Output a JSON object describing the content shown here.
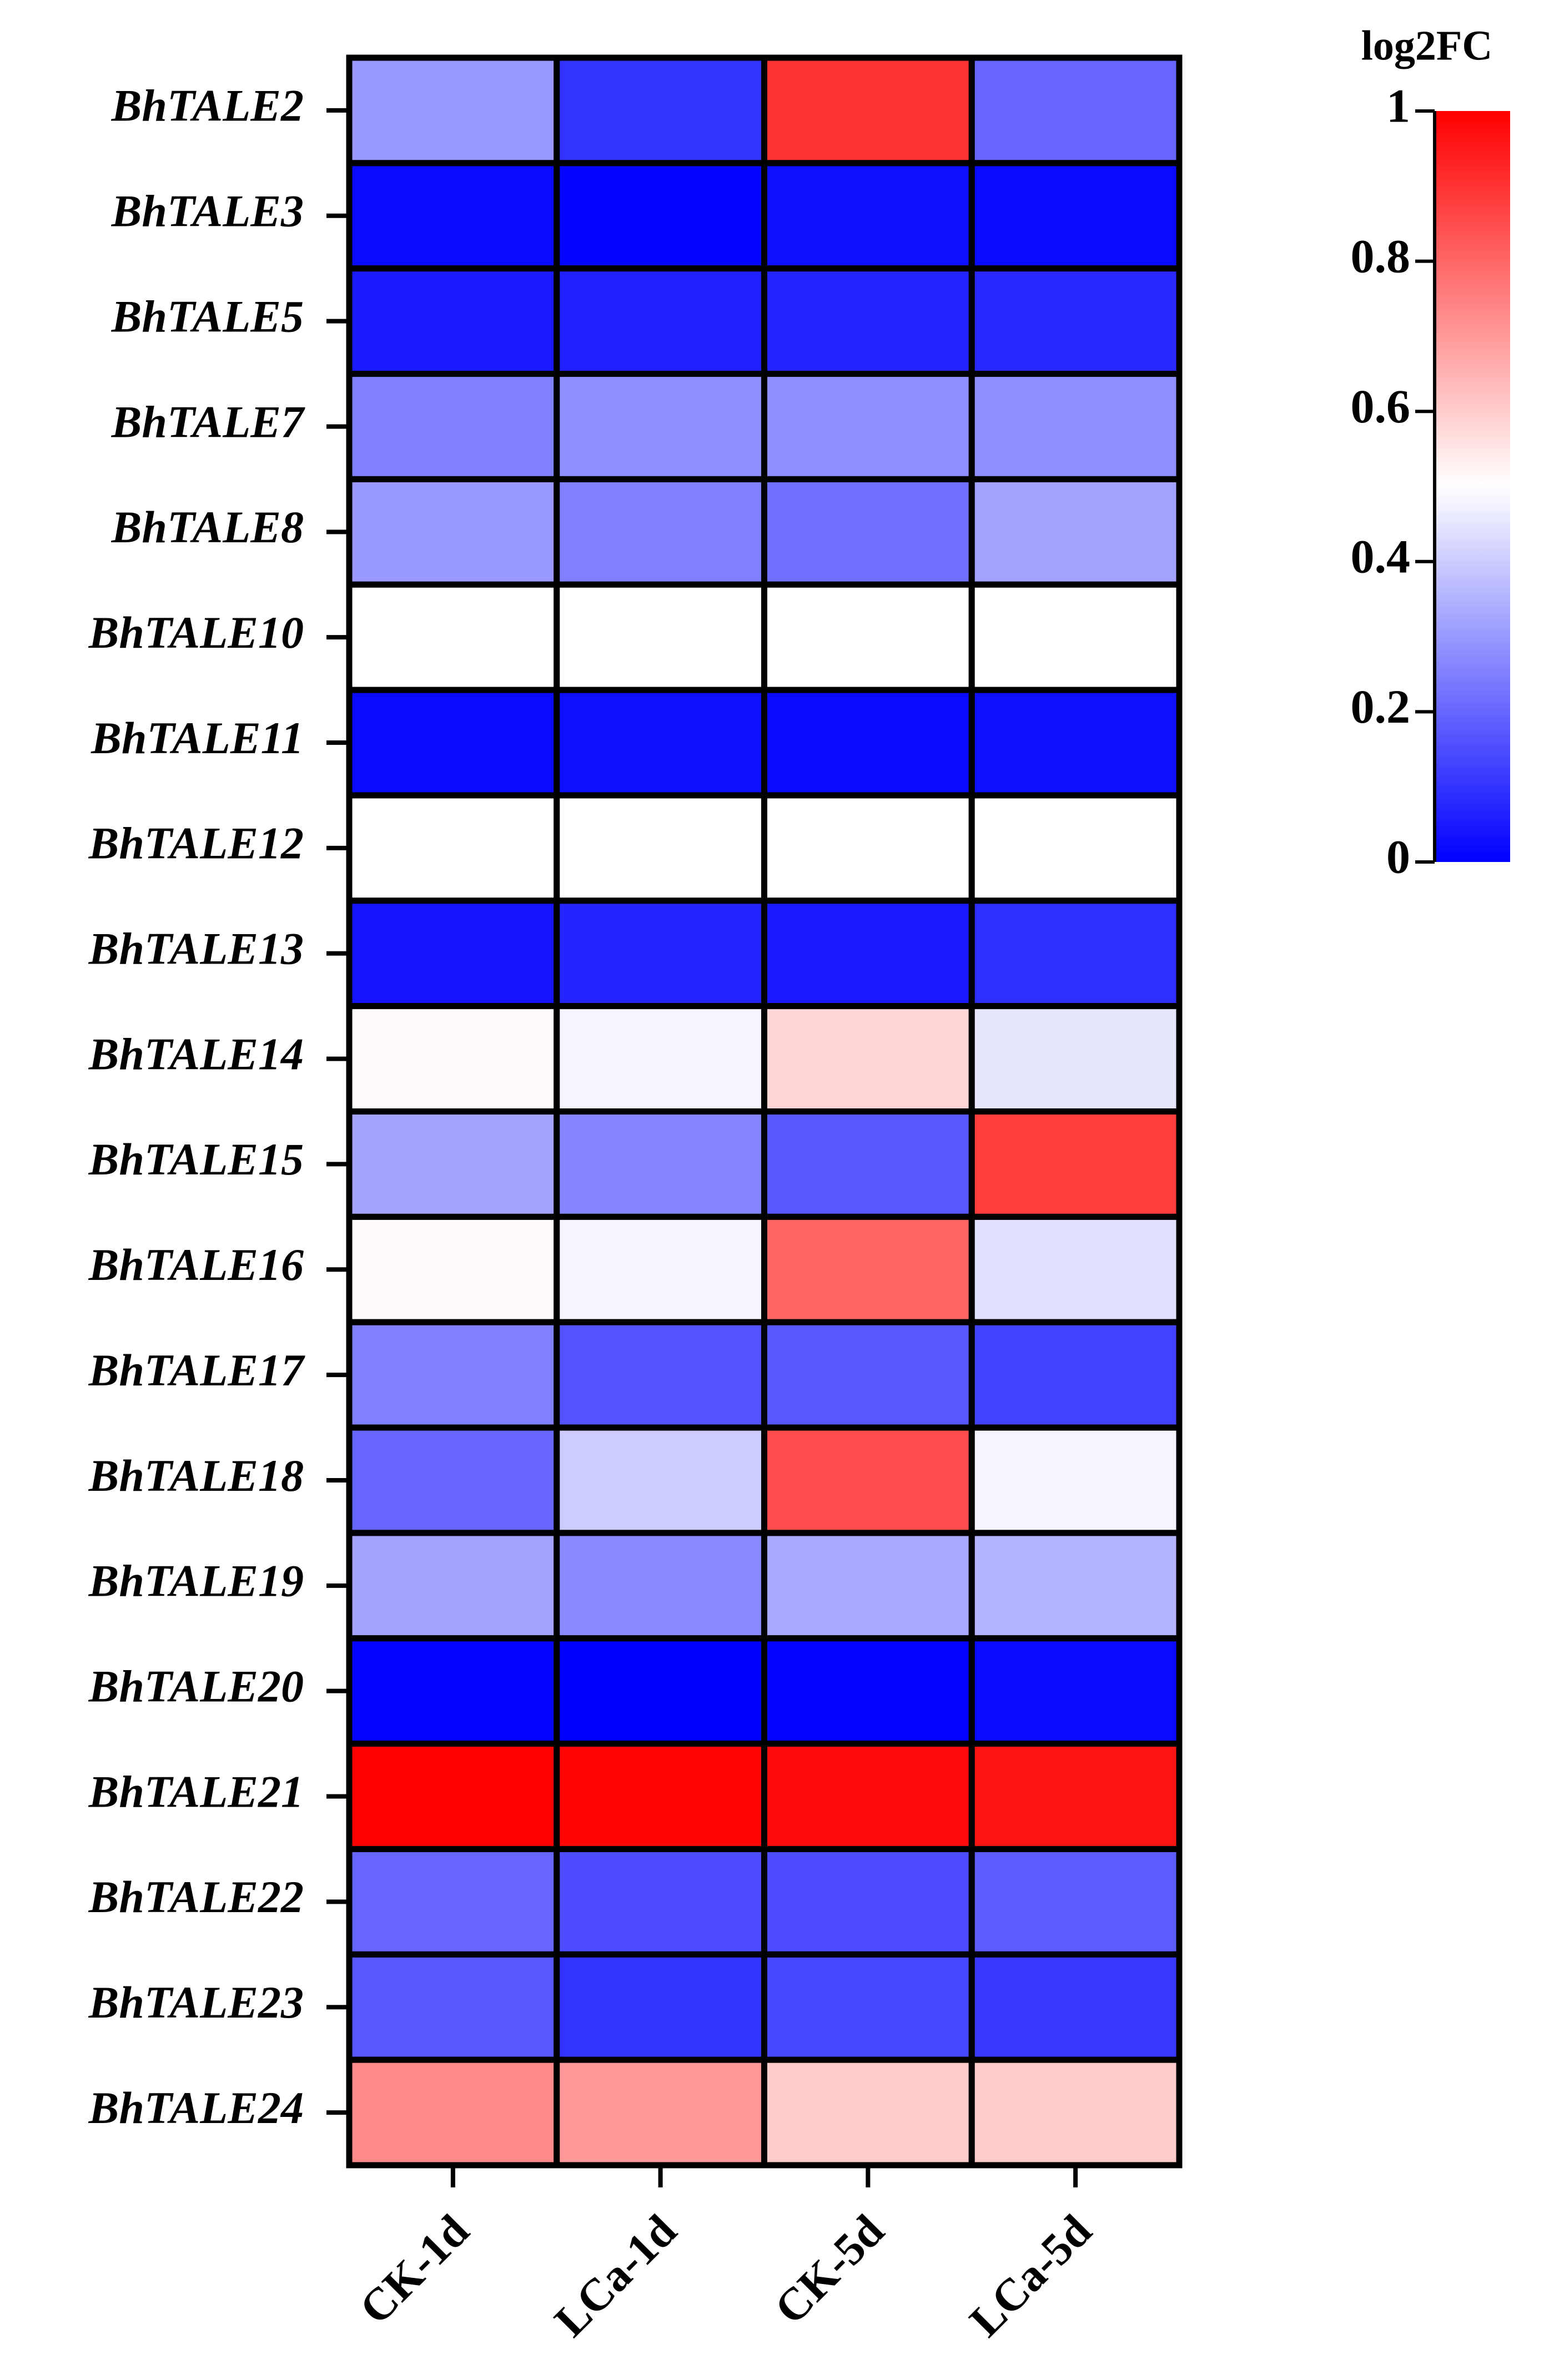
{
  "chart_data": {
    "type": "heatmap",
    "colorbar_title": "log2FC",
    "categories": [
      "CK-1d",
      "LCa-1d",
      "CK-5d",
      "LCa-5d"
    ],
    "rows": [
      "BhTALE2",
      "BhTALE3",
      "BhTALE5",
      "BhTALE7",
      "BhTALE8",
      "BhTALE10",
      "BhTALE11",
      "BhTALE12",
      "BhTALE13",
      "BhTALE14",
      "BhTALE15",
      "BhTALE16",
      "BhTALE17",
      "BhTALE18",
      "BhTALE19",
      "BhTALE20",
      "BhTALE21",
      "BhTALE22",
      "BhTALE23",
      "BhTALE24"
    ],
    "values": [
      [
        0.3,
        0.1,
        0.9,
        0.2
      ],
      [
        0.02,
        0.01,
        0.03,
        0.02
      ],
      [
        0.05,
        0.06,
        0.07,
        0.08
      ],
      [
        0.25,
        0.28,
        0.28,
        0.28
      ],
      [
        0.3,
        0.25,
        0.22,
        0.32
      ],
      [
        0.5,
        0.5,
        0.5,
        0.5
      ],
      [
        0.02,
        0.03,
        0.02,
        0.03
      ],
      [
        0.5,
        0.5,
        0.5,
        0.5
      ],
      [
        0.04,
        0.07,
        0.05,
        0.09
      ],
      [
        0.51,
        0.48,
        0.58,
        0.45
      ],
      [
        0.32,
        0.26,
        0.17,
        0.88
      ],
      [
        0.51,
        0.48,
        0.8,
        0.44
      ],
      [
        0.25,
        0.16,
        0.17,
        0.13
      ],
      [
        0.2,
        0.4,
        0.85,
        0.48
      ],
      [
        0.32,
        0.27,
        0.33,
        0.35
      ],
      [
        0.01,
        0.0,
        0.01,
        0.02
      ],
      [
        1,
        0.99,
        0.98,
        0.96
      ],
      [
        0.2,
        0.15,
        0.15,
        0.18
      ],
      [
        0.17,
        0.1,
        0.14,
        0.11
      ],
      [
        0.73,
        0.7,
        0.6,
        0.6
      ]
    ],
    "colorscale": [
      {
        "value": 0,
        "color": "#0000ff"
      },
      {
        "value": 0.5,
        "color": "#ffffff"
      },
      {
        "value": 1,
        "color": "#ff0000"
      }
    ],
    "clim": [
      0,
      1
    ],
    "cticks": [
      0,
      0.2,
      0.4,
      0.6,
      0.8,
      1
    ]
  }
}
